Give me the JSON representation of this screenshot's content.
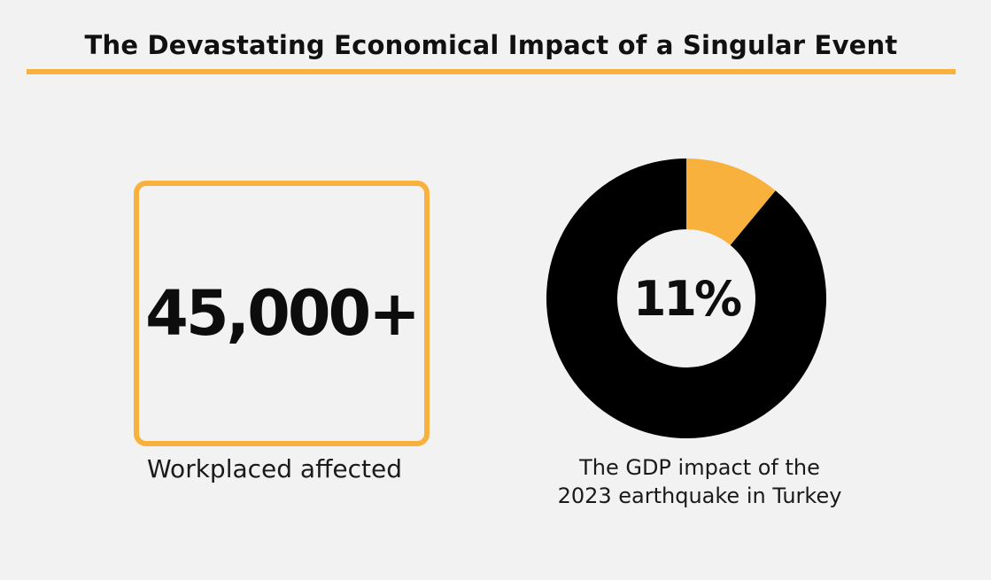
{
  "header": {
    "title": "The Devastating Economical Impact of a Singular Event"
  },
  "stat": {
    "value": "45,000+",
    "label": "Workplaced affected"
  },
  "chart_data": {
    "type": "pie",
    "donut": true,
    "categories": [
      "GDP impact",
      "Remainder"
    ],
    "values": [
      11,
      89
    ],
    "colors": [
      "#f9b13d",
      "#000000"
    ],
    "center_label": "11%",
    "caption_lines": [
      "The GDP impact of the",
      "2023 earthquake in Turkey"
    ]
  },
  "colors": {
    "accent": "#f9b13d",
    "background": "#f2f2f2",
    "text": "#111111"
  }
}
